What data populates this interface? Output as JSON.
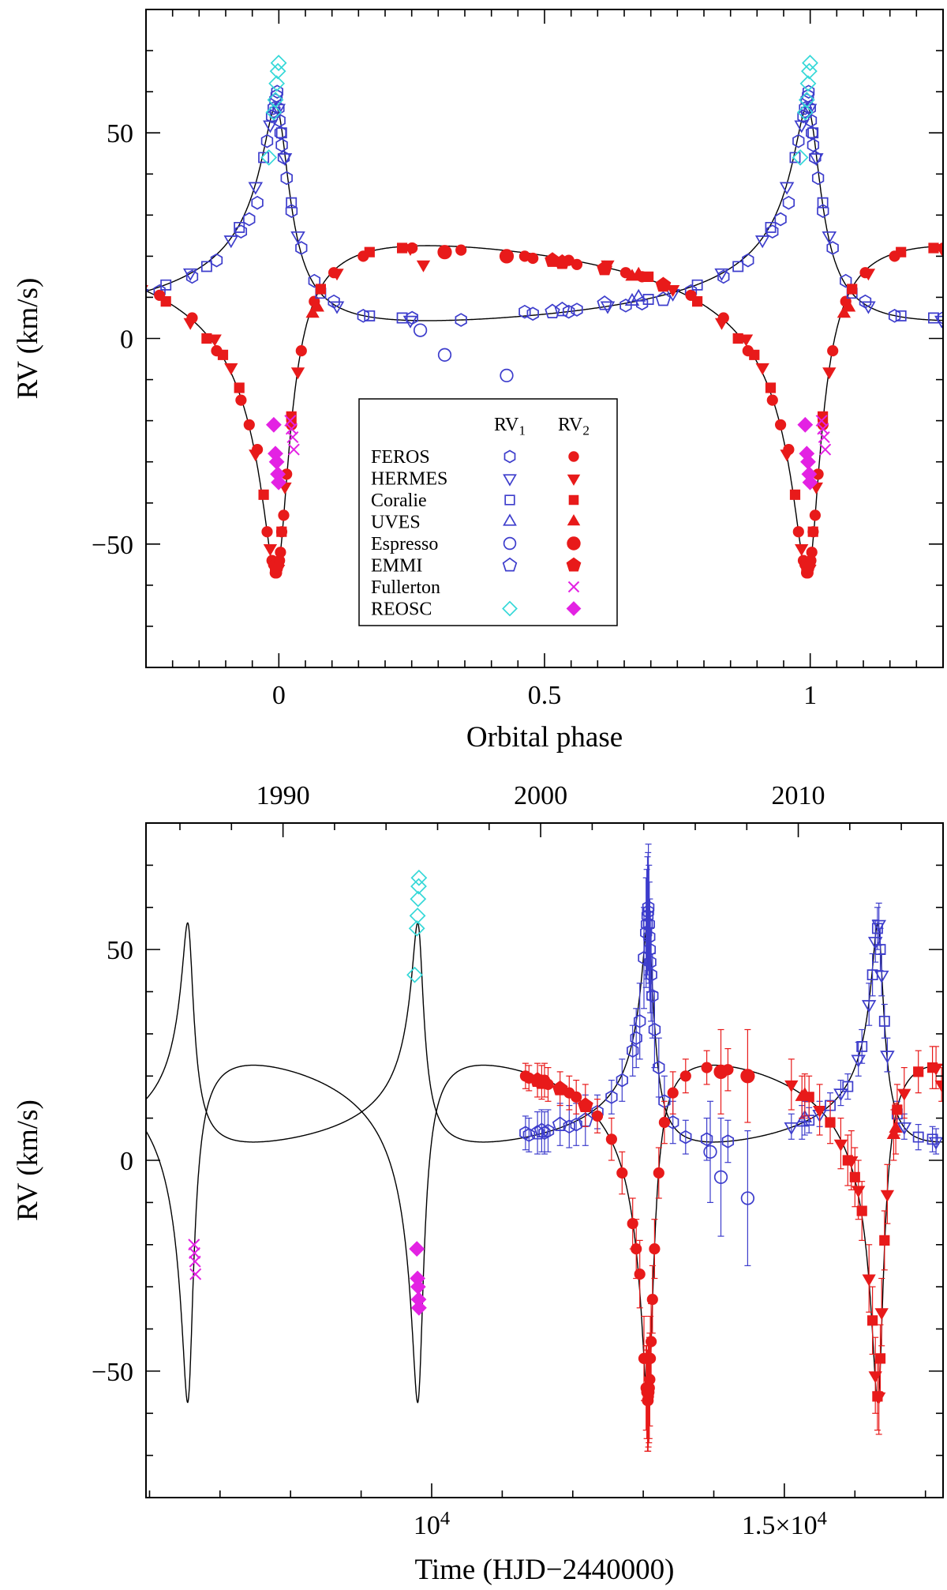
{
  "figure": {
    "palette": {
      "blue": "#3d3dcc",
      "red": "#e81a1a",
      "cyan": "#35d8d8",
      "magenta": "#e322e3",
      "black": "#000000",
      "background": "#ffffff"
    }
  },
  "chart_data": {
    "type": "scatter",
    "panels": [
      {
        "id": "phase",
        "xlabel": "Orbital phase",
        "ylabel": "RV (km/s)",
        "xlim": [
          -0.25,
          1.25
        ],
        "ylim": [
          -80,
          80
        ],
        "x_major_ticks": [
          {
            "v": 0,
            "label": "0"
          },
          {
            "v": 0.5,
            "label": "0.5"
          },
          {
            "v": 1,
            "label": "1"
          }
        ],
        "x_minor_step": 0.05,
        "y_major_ticks": [
          {
            "v": -50,
            "label": "−50"
          },
          {
            "v": 0,
            "label": "0"
          },
          {
            "v": 50,
            "label": "50"
          }
        ],
        "y_minor_step": 10,
        "error_bars": false,
        "fold": true
      },
      {
        "id": "time",
        "xlabel": "Time (HJD−2440000)",
        "ylabel": "RV (km/s)",
        "xlim": [
          5950,
          17250
        ],
        "ylim": [
          -80,
          80
        ],
        "x_major_ticks": [
          {
            "v": 10000,
            "label": "10^4"
          },
          {
            "v": 15000,
            "label": "1.5×10^4"
          }
        ],
        "x_minor_step": 1000,
        "y_major_ticks": [
          {
            "v": -50,
            "label": "−50"
          },
          {
            "v": 0,
            "label": "0"
          },
          {
            "v": 50,
            "label": "50"
          }
        ],
        "y_minor_step": 10,
        "top_axis": {
          "unit": "year",
          "major_ticks": [
            {
              "year": 1990,
              "label": "1990"
            },
            {
              "year": 2000,
              "label": "2000"
            },
            {
              "year": 2010,
              "label": "2010"
            }
          ],
          "minor_step_years": 2,
          "year_range": [
            1986,
            2014
          ],
          "t_at_1990": 7892.5,
          "days_per_year": 365.25
        },
        "error_bars": true,
        "fold": false
      }
    ],
    "orbit_model": {
      "P_days": 3261,
      "T0": 6560,
      "e": 0.73,
      "omega_deg": 20,
      "gamma1_km_s": 12.5,
      "gamma2_km_s": 10,
      "K1_km_s": 26,
      "K2_km_s": 40,
      "curve_color": "#000000"
    },
    "legend": {
      "headers": [
        "RV_1",
        "RV_2"
      ],
      "rows": [
        {
          "label": "FEROS",
          "rv1": {
            "shape": "hexagon",
            "filled": false,
            "color": "blue"
          },
          "rv2": {
            "shape": "circle",
            "filled": true,
            "color": "red",
            "size": 8
          }
        },
        {
          "label": "HERMES",
          "rv1": {
            "shape": "triangle-down",
            "filled": false,
            "color": "blue"
          },
          "rv2": {
            "shape": "triangle-down",
            "filled": true,
            "color": "red"
          }
        },
        {
          "label": "Coralie",
          "rv1": {
            "shape": "square",
            "filled": false,
            "color": "blue"
          },
          "rv2": {
            "shape": "square",
            "filled": true,
            "color": "red"
          }
        },
        {
          "label": "UVES",
          "rv1": {
            "shape": "triangle-up",
            "filled": false,
            "color": "blue"
          },
          "rv2": {
            "shape": "triangle-up",
            "filled": true,
            "color": "red"
          }
        },
        {
          "label": "Espresso",
          "rv1": {
            "shape": "circle",
            "filled": false,
            "color": "blue",
            "size": 9.5
          },
          "rv2": {
            "shape": "circle",
            "filled": true,
            "color": "red",
            "size": 10.5
          }
        },
        {
          "label": "EMMI",
          "rv1": {
            "shape": "pentagon",
            "filled": false,
            "color": "blue",
            "size": 8.5
          },
          "rv2": {
            "shape": "pentagon",
            "filled": true,
            "color": "red",
            "size": 9
          }
        },
        {
          "label": "Fullerton",
          "rv1": null,
          "rv2": {
            "shape": "cross",
            "filled": false,
            "color": "magenta",
            "size": 8
          }
        },
        {
          "label": "REOSC",
          "rv1": {
            "shape": "diamond",
            "filled": false,
            "color": "cyan",
            "size": 8
          },
          "rv2": {
            "shape": "diamond",
            "filled": true,
            "color": "magenta",
            "size": 8
          }
        }
      ]
    },
    "point_columns": [
      "t_HJD_minus_2440000",
      "RV_km_s",
      "err_km_s"
    ],
    "datasets": [
      {
        "instrument": "FEROS",
        "component": 1,
        "shape": "hexagon",
        "filled": false,
        "color": "blue",
        "points": [
          [
            11330,
            6.5,
            4
          ],
          [
            11380,
            6,
            4
          ],
          [
            11600,
            6.5,
            5
          ],
          [
            11650,
            7,
            5
          ],
          [
            11950,
            8,
            5
          ],
          [
            12050,
            8.5,
            5
          ],
          [
            12350,
            11.5,
            4
          ],
          [
            12550,
            15,
            4
          ],
          [
            12700,
            19,
            5
          ],
          [
            12850,
            26,
            6
          ],
          [
            12900,
            29,
            7
          ],
          [
            12950,
            33,
            9
          ],
          [
            13010,
            48,
            12
          ],
          [
            13040,
            54,
            13
          ],
          [
            13050,
            56,
            13
          ],
          [
            13060,
            58,
            14
          ],
          [
            13068,
            59,
            14
          ],
          [
            13072,
            60,
            15
          ],
          [
            13080,
            56,
            14
          ],
          [
            13086,
            53,
            13
          ],
          [
            13092,
            50,
            12
          ],
          [
            13100,
            47,
            12
          ],
          [
            13112,
            44,
            11
          ],
          [
            13130,
            39,
            10
          ],
          [
            13160,
            31,
            9
          ],
          [
            13220,
            22,
            7
          ],
          [
            13300,
            14,
            6
          ],
          [
            13420,
            9,
            5
          ],
          [
            13600,
            5.5,
            4
          ],
          [
            13900,
            5,
            5
          ],
          [
            14200,
            4.5,
            5
          ]
        ]
      },
      {
        "instrument": "FEROS",
        "component": 2,
        "shape": "circle",
        "filled": true,
        "color": "red",
        "size": 8,
        "points": [
          [
            11330,
            20,
            3
          ],
          [
            11380,
            19.5,
            3
          ],
          [
            11600,
            19,
            4
          ],
          [
            11650,
            18,
            4
          ],
          [
            11950,
            16,
            4
          ],
          [
            12050,
            15,
            4
          ],
          [
            12350,
            10.5,
            4
          ],
          [
            12550,
            5,
            5
          ],
          [
            12700,
            -3,
            5
          ],
          [
            12850,
            -15,
            6
          ],
          [
            12900,
            -21,
            7
          ],
          [
            12950,
            -27,
            8
          ],
          [
            13010,
            -47,
            10
          ],
          [
            13040,
            -54,
            10
          ],
          [
            13050,
            -55,
            11
          ],
          [
            13060,
            -57,
            12
          ],
          [
            13068,
            -57,
            12
          ],
          [
            13072,
            -56,
            12
          ],
          [
            13080,
            -55,
            12
          ],
          [
            13086,
            -54,
            12
          ],
          [
            13092,
            -52,
            11
          ],
          [
            13100,
            -47,
            10
          ],
          [
            13112,
            -43,
            9
          ],
          [
            13130,
            -33,
            8
          ],
          [
            13160,
            -21,
            7
          ],
          [
            13220,
            -3,
            6
          ],
          [
            13300,
            9,
            5
          ],
          [
            13420,
            16,
            5
          ],
          [
            13600,
            20,
            4
          ],
          [
            13900,
            22,
            4
          ],
          [
            14200,
            21.5,
            5
          ]
        ]
      },
      {
        "instrument": "HERMES",
        "component": 1,
        "shape": "triangle-down",
        "filled": false,
        "color": "blue",
        "points": [
          [
            15100,
            8,
            3
          ],
          [
            15500,
            11,
            3
          ],
          [
            15800,
            16,
            3
          ],
          [
            16050,
            24,
            4
          ],
          [
            16200,
            37,
            5
          ],
          [
            16290,
            52,
            5
          ],
          [
            16340,
            56,
            5
          ],
          [
            16380,
            44,
            5
          ],
          [
            16460,
            25,
            4
          ],
          [
            16700,
            8,
            3
          ],
          [
            17150,
            4.5,
            3
          ]
        ]
      },
      {
        "instrument": "HERMES",
        "component": 2,
        "shape": "triangle-down",
        "filled": true,
        "color": "red",
        "points": [
          [
            15100,
            18,
            6
          ],
          [
            15500,
            12,
            6
          ],
          [
            15800,
            4,
            6
          ],
          [
            15950,
            0,
            7
          ],
          [
            16050,
            -7,
            7
          ],
          [
            16200,
            -28,
            8
          ],
          [
            16290,
            -51,
            9
          ],
          [
            16340,
            -56,
            9
          ],
          [
            16380,
            -36,
            8
          ],
          [
            16460,
            -8,
            7
          ],
          [
            16700,
            16,
            6
          ],
          [
            17150,
            22,
            5
          ],
          [
            17230,
            18,
            4
          ]
        ]
      },
      {
        "instrument": "Coralie",
        "component": 1,
        "shape": "square",
        "filled": false,
        "color": "blue",
        "points": [
          [
            15350,
            9.5,
            3
          ],
          [
            15650,
            13,
            3
          ],
          [
            15900,
            17.5,
            3
          ],
          [
            16100,
            27,
            4
          ],
          [
            16250,
            44,
            5
          ],
          [
            16320,
            55,
            5
          ],
          [
            16360,
            50,
            5
          ],
          [
            16420,
            33,
            4
          ],
          [
            16600,
            11,
            3
          ],
          [
            16900,
            5.5,
            3
          ],
          [
            17100,
            5,
            3
          ]
        ]
      },
      {
        "instrument": "Coralie",
        "component": 2,
        "shape": "square",
        "filled": true,
        "color": "red",
        "points": [
          [
            15350,
            15,
            5
          ],
          [
            15650,
            9,
            5
          ],
          [
            15900,
            0,
            6
          ],
          [
            16000,
            -4,
            7
          ],
          [
            16100,
            -12,
            7
          ],
          [
            16250,
            -38,
            8
          ],
          [
            16320,
            -56,
            8
          ],
          [
            16360,
            -47,
            8
          ],
          [
            16420,
            -19,
            7
          ],
          [
            16600,
            12,
            6
          ],
          [
            16900,
            21,
            5
          ],
          [
            17100,
            22,
            5
          ]
        ]
      },
      {
        "instrument": "UVES",
        "component": 1,
        "shape": "triangle-up",
        "filled": false,
        "color": "blue",
        "points": [
          [
            15250,
            9,
            4
          ],
          [
            15290,
            10,
            4
          ]
        ]
      },
      {
        "instrument": "UVES",
        "component": 2,
        "shape": "triangle-up",
        "filled": true,
        "color": "red",
        "points": [
          [
            15250,
            15,
            5
          ],
          [
            15290,
            15.5,
            5
          ],
          [
            16550,
            6,
            6
          ],
          [
            16580,
            7.5,
            6
          ]
        ]
      },
      {
        "instrument": "Espresso",
        "component": 1,
        "shape": "circle",
        "filled": false,
        "color": "blue",
        "size": 9.5,
        "points": [
          [
            13950,
            2,
            12
          ],
          [
            14100,
            -4,
            14
          ],
          [
            14480,
            -9,
            16
          ]
        ]
      },
      {
        "instrument": "Espresso",
        "component": 2,
        "shape": "circle",
        "filled": true,
        "color": "red",
        "size": 10.5,
        "points": [
          [
            14100,
            21,
            10
          ],
          [
            14480,
            20,
            11
          ]
        ]
      },
      {
        "instrument": "EMMI",
        "component": 1,
        "shape": "pentagon",
        "filled": false,
        "color": "blue",
        "size": 8.5,
        "points": [
          [
            11500,
            6.5,
            5
          ],
          [
            11560,
            7,
            5
          ],
          [
            11820,
            8.5,
            5
          ],
          [
            12180,
            9.5,
            6
          ]
        ]
      },
      {
        "instrument": "EMMI",
        "component": 2,
        "shape": "pentagon",
        "filled": true,
        "color": "red",
        "size": 9,
        "points": [
          [
            11500,
            19,
            4
          ],
          [
            11560,
            18.5,
            4
          ],
          [
            11820,
            17,
            4
          ],
          [
            12180,
            13,
            5
          ]
        ]
      },
      {
        "instrument": "Fullerton",
        "component": 2,
        "shape": "cross",
        "filled": false,
        "color": "magenta",
        "size": 8,
        "points": [
          [
            6630,
            -20,
            0
          ],
          [
            6638,
            -22,
            0
          ],
          [
            6645,
            -24,
            0
          ],
          [
            6652,
            -27,
            0
          ]
        ]
      },
      {
        "instrument": "REOSC",
        "component": 1,
        "shape": "diamond",
        "filled": false,
        "color": "cyan",
        "size": 8,
        "points": [
          [
            9760,
            44,
            0
          ],
          [
            9790,
            55,
            0
          ],
          [
            9800,
            58,
            0
          ],
          [
            9808,
            62,
            0
          ],
          [
            9815,
            65,
            0
          ],
          [
            9820,
            67,
            0
          ]
        ]
      },
      {
        "instrument": "REOSC",
        "component": 2,
        "shape": "diamond",
        "filled": true,
        "color": "magenta",
        "size": 8,
        "points": [
          [
            9790,
            -21,
            0
          ],
          [
            9800,
            -28,
            0
          ],
          [
            9808,
            -30,
            0
          ],
          [
            9815,
            -33,
            0
          ],
          [
            9820,
            -35,
            0
          ]
        ]
      }
    ]
  }
}
